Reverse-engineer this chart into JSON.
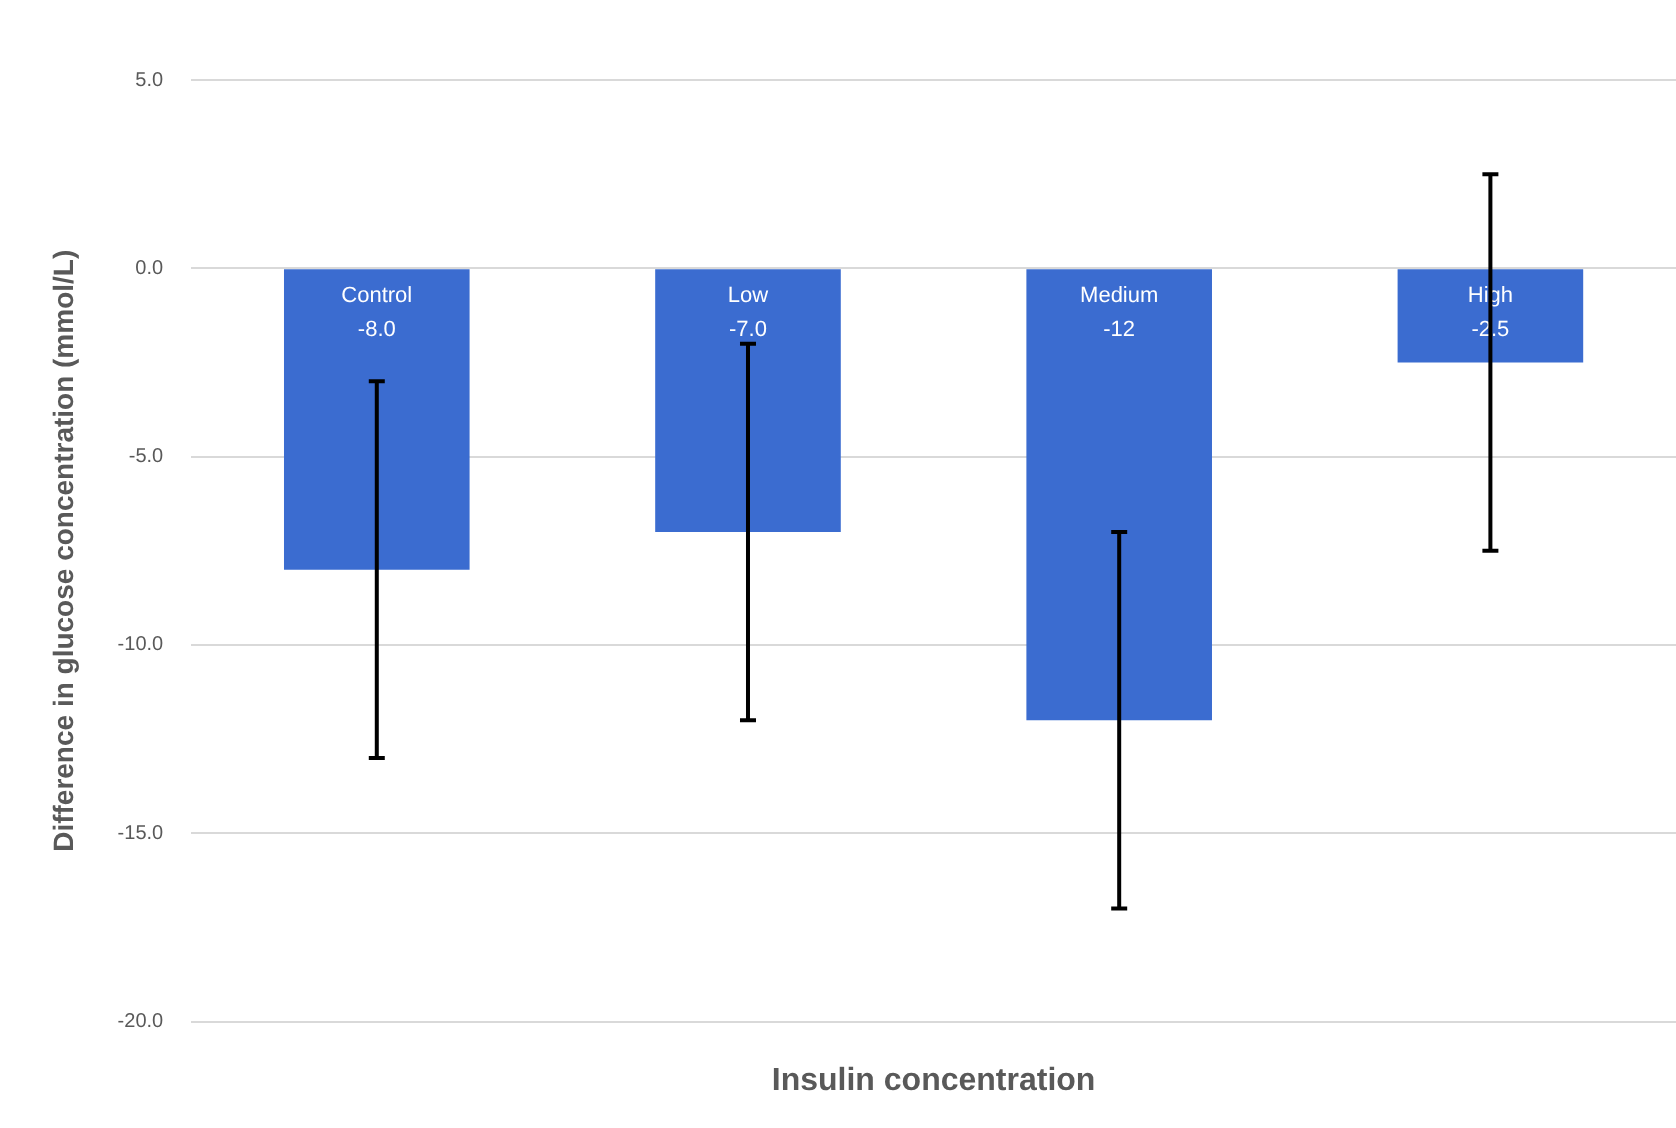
{
  "chart_data": {
    "type": "bar",
    "xlabel": "Insulin concentration",
    "ylabel": "Difference in glucose concentration (mmol/L)",
    "categories": [
      "Control",
      "Low",
      "Medium",
      "High"
    ],
    "series": [
      {
        "color": "#3b6cd0",
        "values": [
          -8.0,
          -7.0,
          -12,
          -2.5
        ],
        "errors": [
          5,
          5,
          5,
          5
        ],
        "value_labels": [
          "-8.0",
          "-7.0",
          "-12",
          "-2.5"
        ]
      }
    ],
    "ylim": [
      -20,
      5
    ],
    "yticks": [
      {
        "value": 5,
        "label": "5.0"
      },
      {
        "value": 0,
        "label": "0.0"
      },
      {
        "value": -5,
        "label": "-5.0"
      },
      {
        "value": -10,
        "label": "-10.0"
      },
      {
        "value": -15,
        "label": "-15.0"
      },
      {
        "value": -20,
        "label": "-20.0"
      }
    ],
    "grid": "y",
    "legend": false,
    "tick_labels": "y"
  }
}
